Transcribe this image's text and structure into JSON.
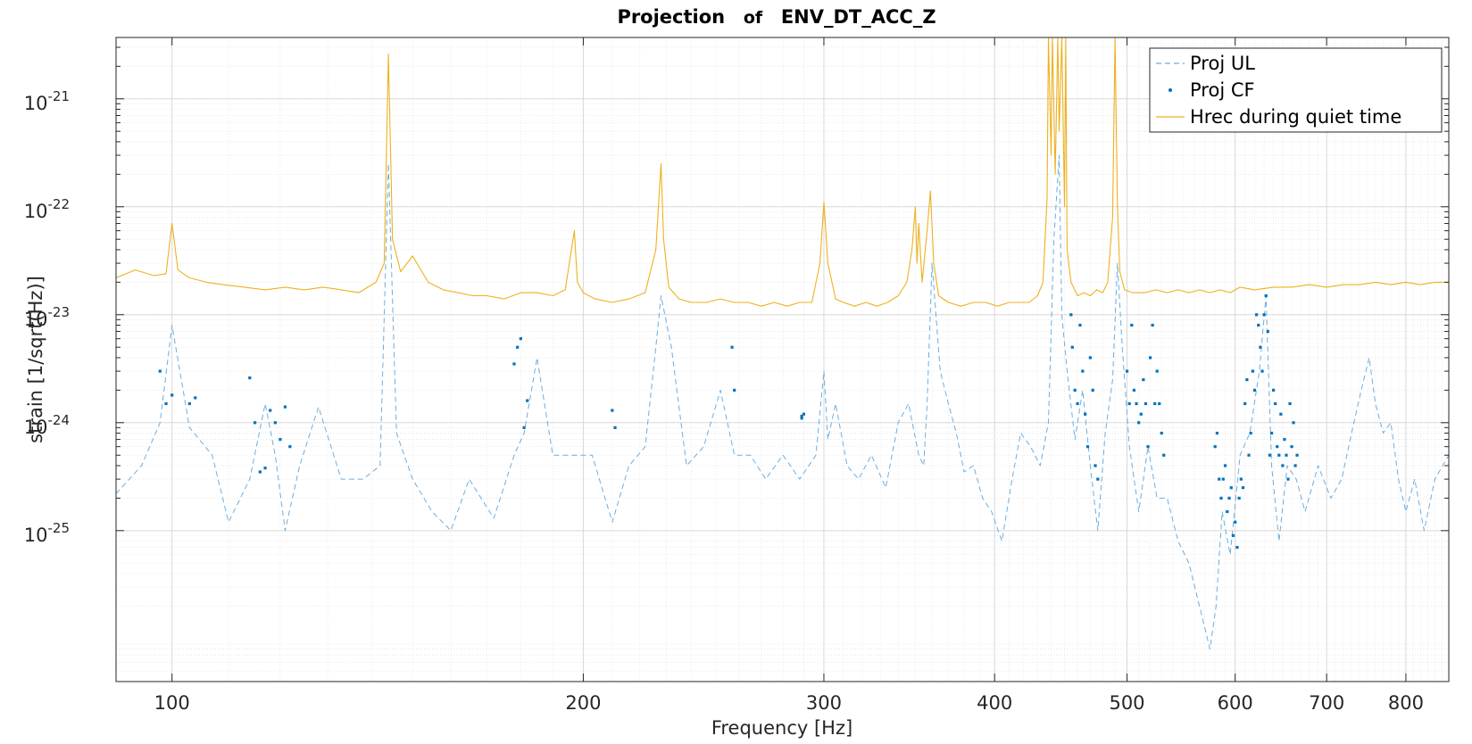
{
  "chart_data": {
    "type": "line",
    "title": {
      "part1": "Projection",
      "part2": "of",
      "part3": "ENV_DT_ACC_Z"
    },
    "xlabel": "Frequency [Hz]",
    "ylabel": "strain [1/sqrt(Hz)]",
    "xscale": "log",
    "yscale": "log",
    "xlim": [
      91,
      860
    ],
    "ylim": [
      4e-27,
      3.7e-21
    ],
    "grid": true,
    "legend_position": "top-right",
    "x_ticks": [
      {
        "value": 100,
        "label": "100"
      },
      {
        "value": 200,
        "label": "200"
      },
      {
        "value": 300,
        "label": "300"
      },
      {
        "value": 400,
        "label": "400"
      },
      {
        "value": 500,
        "label": "500"
      },
      {
        "value": 600,
        "label": "600"
      },
      {
        "value": 700,
        "label": "700"
      },
      {
        "value": 800,
        "label": "800"
      }
    ],
    "y_ticks": [
      {
        "exp": -21,
        "base": "10",
        "sup": "-21"
      },
      {
        "exp": -22,
        "base": "10",
        "sup": "-22"
      },
      {
        "exp": -23,
        "base": "10",
        "sup": "-23"
      },
      {
        "exp": -24,
        "base": "10",
        "sup": "-24"
      },
      {
        "exp": -25,
        "base": "10",
        "sup": "-25"
      }
    ],
    "series": [
      {
        "name": "Proj UL",
        "style": "dashed",
        "color": "#6aaee0",
        "x": [
          91,
          95,
          98,
          100,
          103,
          107,
          110,
          114,
          117,
          119,
          121,
          124,
          128,
          133,
          138,
          142,
          144,
          146,
          150,
          155,
          160,
          165,
          172,
          178,
          181,
          185,
          190,
          197,
          203,
          210,
          216,
          222,
          226,
          228,
          232,
          238,
          245,
          252,
          258,
          265,
          272,
          280,
          288,
          296,
          300,
          302,
          306,
          312,
          318,
          325,
          333,
          340,
          346,
          352,
          355,
          357,
          360,
          365,
          370,
          375,
          380,
          386,
          392,
          398,
          405,
          412,
          418,
          425,
          432,
          438,
          442,
          446,
          448,
          452,
          458,
          464,
          470,
          476,
          482,
          488,
          492,
          496,
          502,
          510,
          518,
          526,
          535,
          545,
          555,
          565,
          575,
          581,
          587,
          595,
          605,
          615,
          625,
          632,
          638,
          646,
          655,
          665,
          675,
          690,
          705,
          718,
          730,
          742,
          752,
          760,
          770,
          780,
          790,
          800,
          812,
          825,
          840,
          860
        ],
        "y": [
          2.2e-25,
          4e-25,
          1e-24,
          8e-24,
          9e-25,
          5e-25,
          1.2e-25,
          3e-25,
          1.5e-24,
          5e-25,
          1e-25,
          4e-25,
          1.4e-24,
          3e-25,
          3e-25,
          4e-25,
          2.5e-22,
          8e-25,
          3e-25,
          1.5e-25,
          1e-25,
          3e-25,
          1.3e-25,
          5e-25,
          8e-25,
          4e-24,
          5e-25,
          5e-25,
          5e-25,
          1.2e-25,
          4e-25,
          6e-25,
          5e-24,
          1.5e-23,
          5e-24,
          4e-25,
          6e-25,
          2e-24,
          5e-25,
          5e-25,
          3e-25,
          5e-25,
          3e-25,
          5e-25,
          3e-24,
          7e-25,
          1.5e-24,
          4e-25,
          3e-25,
          5e-25,
          2.5e-25,
          1e-24,
          1.5e-24,
          5e-25,
          4e-25,
          1.5e-24,
          3e-23,
          3e-24,
          1.5e-24,
          8e-25,
          3.5e-25,
          4e-25,
          2e-25,
          1.5e-25,
          8e-26,
          3e-25,
          8e-25,
          6e-25,
          4e-25,
          1e-24,
          5e-23,
          3e-22,
          1e-23,
          3e-24,
          7e-25,
          2e-24,
          4e-25,
          1e-25,
          8e-25,
          2.5e-24,
          3e-23,
          5e-24,
          6e-25,
          1.5e-25,
          6e-25,
          2e-25,
          2e-25,
          8e-26,
          5e-26,
          2e-26,
          8e-27,
          2e-26,
          1.5e-25,
          6e-26,
          5e-25,
          8e-25,
          3e-24,
          1.5e-23,
          4e-25,
          8e-26,
          4e-25,
          3e-25,
          1.5e-25,
          4e-25,
          2e-25,
          3e-25,
          8e-25,
          2e-24,
          4e-24,
          1.5e-24,
          8e-25,
          1e-24,
          3e-25,
          1.5e-25,
          3e-25,
          1e-25,
          3e-25,
          5e-25
        ]
      },
      {
        "name": "Proj CF",
        "style": "dots",
        "color": "#0072bd",
        "x": [
          98,
          99,
          100,
          103,
          104,
          114,
          115,
          116,
          117,
          118,
          119,
          120,
          121,
          122,
          178,
          179,
          180,
          181,
          182,
          210,
          211,
          257,
          258,
          289,
          289,
          290,
          455,
          456,
          458,
          460,
          462,
          464,
          466,
          468,
          470,
          472,
          474,
          476,
          500,
          502,
          504,
          506,
          508,
          510,
          512,
          514,
          516,
          518,
          520,
          522,
          524,
          526,
          528,
          530,
          532,
          580,
          582,
          584,
          586,
          588,
          590,
          592,
          594,
          596,
          598,
          600,
          602,
          604,
          606,
          608,
          610,
          612,
          614,
          616,
          618,
          620,
          622,
          624,
          626,
          628,
          630,
          632,
          634,
          636,
          638,
          640,
          642,
          644,
          646,
          648,
          650,
          652,
          654,
          656,
          658,
          660,
          662,
          664,
          666
        ],
        "y": [
          3e-24,
          1.5e-24,
          1.8e-24,
          1.5e-24,
          1.7e-24,
          2.6e-24,
          1e-24,
          3.5e-25,
          3.8e-25,
          1.3e-24,
          1e-24,
          7e-25,
          1.4e-24,
          6e-25,
          3.5e-24,
          5e-24,
          6e-24,
          9e-25,
          1.6e-24,
          1.3e-24,
          9e-25,
          5e-24,
          2e-24,
          1.1e-24,
          1.15e-24,
          1.2e-24,
          1e-23,
          5e-24,
          2e-24,
          1.5e-24,
          8e-24,
          3e-24,
          1.2e-24,
          6e-25,
          4e-24,
          2e-24,
          4e-25,
          3e-25,
          3e-24,
          1.5e-24,
          8e-24,
          2e-24,
          1.5e-24,
          1e-24,
          1.2e-24,
          2.5e-24,
          1.5e-24,
          6e-25,
          4e-24,
          8e-24,
          1.5e-24,
          3e-24,
          1.5e-24,
          8e-25,
          5e-25,
          6e-25,
          8e-25,
          3e-25,
          2e-25,
          3e-25,
          4e-25,
          1.5e-25,
          2e-25,
          2.5e-25,
          9e-26,
          1.2e-25,
          7e-26,
          2e-25,
          3e-25,
          2.5e-25,
          1.5e-24,
          2.5e-24,
          5e-25,
          8e-25,
          3e-24,
          2e-24,
          1e-23,
          8e-24,
          5e-24,
          3e-24,
          1e-23,
          1.5e-23,
          7e-24,
          5e-25,
          8e-25,
          2e-24,
          1.5e-24,
          6e-25,
          5e-25,
          1.2e-24,
          4e-25,
          7e-25,
          5e-25,
          3e-25,
          1.5e-24,
          6e-25,
          1e-24,
          4e-25,
          5e-25
        ]
      },
      {
        "name": "Hrec during quiet time",
        "style": "solid",
        "color": "#edb120",
        "x": [
          91,
          94,
          97,
          99,
          100,
          101,
          103,
          106,
          109,
          113,
          117,
          121,
          125,
          129,
          133,
          137,
          141,
          143,
          144,
          145,
          147,
          150,
          154,
          158,
          162,
          166,
          170,
          175,
          180,
          185,
          190,
          194,
          197,
          198,
          200,
          204,
          210,
          216,
          222,
          226,
          228,
          229,
          231,
          235,
          240,
          246,
          252,
          258,
          264,
          270,
          276,
          282,
          288,
          294,
          298,
          300,
          302,
          306,
          310,
          316,
          322,
          328,
          334,
          340,
          345,
          348,
          350,
          351,
          352,
          354,
          357,
          359,
          361,
          364,
          370,
          378,
          386,
          394,
          402,
          410,
          418,
          424,
          430,
          434,
          437,
          438,
          440,
          441,
          443,
          445,
          446,
          448,
          450,
          451,
          452,
          455,
          460,
          465,
          470,
          475,
          480,
          484,
          488,
          490,
          492,
          494,
          498,
          505,
          515,
          525,
          535,
          545,
          555,
          565,
          575,
          585,
          595,
          605,
          620,
          640,
          660,
          680,
          700,
          720,
          740,
          760,
          780,
          800,
          820,
          840,
          860
        ],
        "y": [
          2.2e-23,
          2.6e-23,
          2.3e-23,
          2.4e-23,
          7e-23,
          2.6e-23,
          2.2e-23,
          2e-23,
          1.9e-23,
          1.8e-23,
          1.7e-23,
          1.8e-23,
          1.7e-23,
          1.8e-23,
          1.7e-23,
          1.6e-23,
          2e-23,
          3e-23,
          2.6e-21,
          5e-23,
          2.5e-23,
          3.5e-23,
          2e-23,
          1.7e-23,
          1.6e-23,
          1.5e-23,
          1.5e-23,
          1.4e-23,
          1.6e-23,
          1.6e-23,
          1.5e-23,
          1.7e-23,
          6e-23,
          2e-23,
          1.6e-23,
          1.4e-23,
          1.3e-23,
          1.4e-23,
          1.6e-23,
          4e-23,
          2.5e-22,
          5e-23,
          1.8e-23,
          1.4e-23,
          1.3e-23,
          1.3e-23,
          1.4e-23,
          1.3e-23,
          1.3e-23,
          1.2e-23,
          1.3e-23,
          1.2e-23,
          1.3e-23,
          1.3e-23,
          3e-23,
          1.1e-22,
          3e-23,
          1.4e-23,
          1.3e-23,
          1.2e-23,
          1.3e-23,
          1.2e-23,
          1.3e-23,
          1.5e-23,
          2e-23,
          4e-23,
          1e-22,
          3e-23,
          7e-23,
          2e-23,
          6e-23,
          1.4e-22,
          3e-23,
          1.5e-23,
          1.3e-23,
          1.2e-23,
          1.3e-23,
          1.3e-23,
          1.2e-23,
          1.3e-23,
          1.3e-23,
          1.3e-23,
          1.5e-23,
          2e-23,
          1.2e-22,
          3.7e-21,
          3e-22,
          3.7e-21,
          2e-22,
          3.7e-21,
          5e-22,
          3.7e-21,
          1e-22,
          3.7e-21,
          4e-23,
          2e-23,
          1.5e-23,
          1.6e-23,
          1.5e-23,
          1.7e-23,
          1.6e-23,
          2e-23,
          8e-23,
          3.7e-21,
          1e-22,
          2.5e-23,
          1.7e-23,
          1.6e-23,
          1.6e-23,
          1.7e-23,
          1.6e-23,
          1.7e-23,
          1.6e-23,
          1.7e-23,
          1.6e-23,
          1.7e-23,
          1.6e-23,
          1.8e-23,
          1.7e-23,
          1.8e-23,
          1.8e-23,
          1.9e-23,
          1.8e-23,
          1.9e-23,
          1.9e-23,
          2e-23,
          1.9e-23,
          2e-23,
          1.9e-23,
          2e-23,
          2e-23
        ]
      }
    ],
    "colors": {
      "proj_ul": "#6aaee0",
      "proj_cf": "#0072bd",
      "hrec": "#edb120",
      "grid": "#dcdcdc",
      "axis": "#262626"
    }
  }
}
